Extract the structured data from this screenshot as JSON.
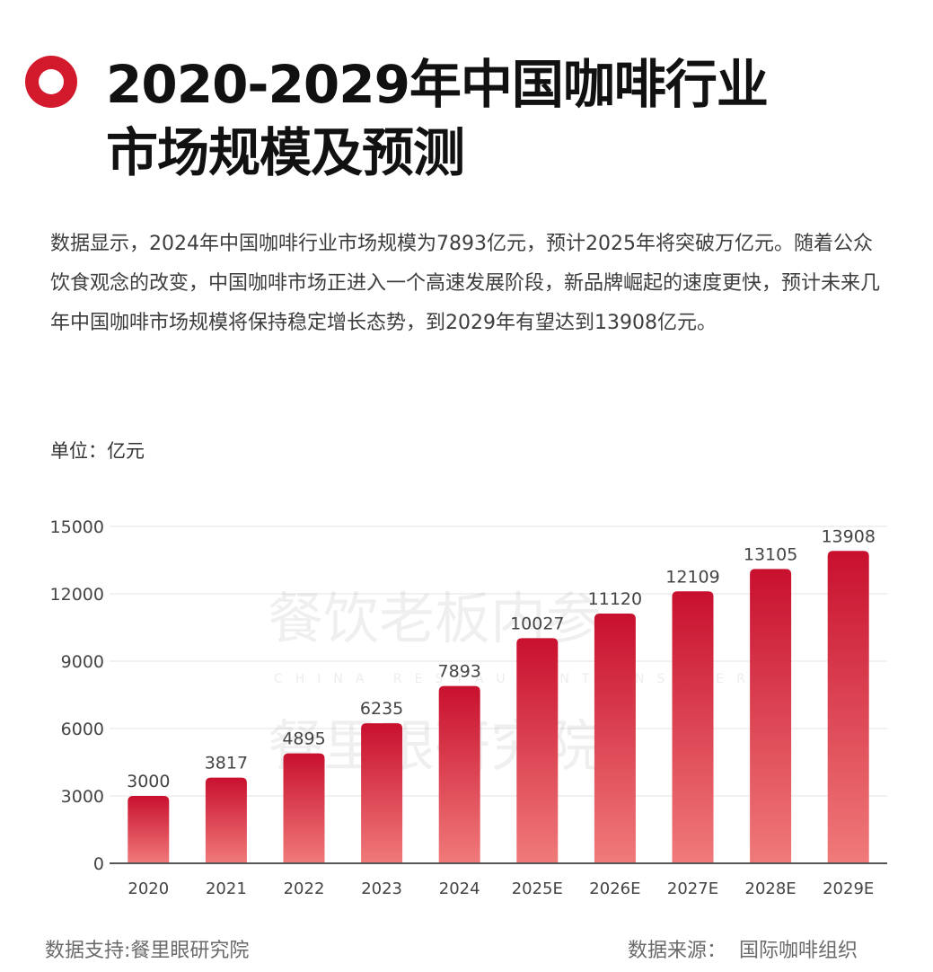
{
  "header": {
    "title_line1": "2020-2029年中国咖啡行业",
    "title_line2": "市场规模及预测",
    "accent_color": "#d3192c"
  },
  "description": "数据显示，2024年中国咖啡行业市场规模为7893亿元，预计2025年将突破万亿元。随着公众饮食观念的改变，中国咖啡市场正进入一个高速发展阶段，新品牌崛起的速度更快，预计未来几年中国咖啡市场规模将保持稳定增长态势，到2029年有望达到13908亿元。",
  "unit_label": "单位：亿元",
  "watermark": {
    "line1": "餐饮老板内参",
    "line2": "CHINA RESTAURANT INSIDER",
    "line3": "餐里眼研究院"
  },
  "chart_data": {
    "type": "bar",
    "categories": [
      "2020",
      "2021",
      "2022",
      "2023",
      "2024",
      "2025E",
      "2026E",
      "2027E",
      "2028E",
      "2029E"
    ],
    "values": [
      3000,
      3817,
      4895,
      6235,
      7893,
      10027,
      11120,
      12109,
      13105,
      13908
    ],
    "ylim": [
      0,
      15000
    ],
    "yticks": [
      0,
      3000,
      6000,
      9000,
      12000,
      15000
    ],
    "grid": true,
    "bar_color_top": "#c8102e",
    "bar_color_bottom": "#f07a7a"
  },
  "footer": {
    "support": "数据支持:餐里眼研究院",
    "source_label": "数据来源：",
    "source_value": "国际咖啡组织"
  }
}
